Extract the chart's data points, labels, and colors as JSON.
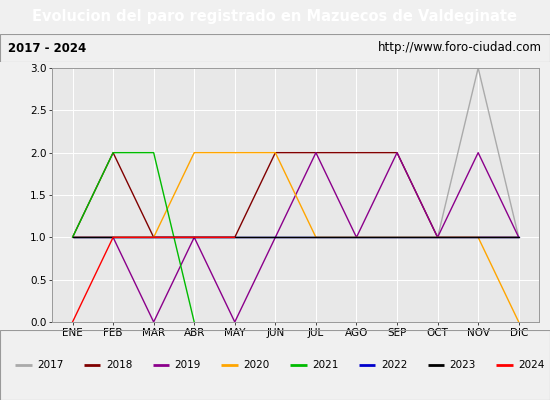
{
  "title": "Evolucion del paro registrado en Mazuecos de Valdeginate",
  "subtitle_left": "2017 - 2024",
  "subtitle_right": "http://www.foro-ciudad.com",
  "months": [
    "ENE",
    "FEB",
    "MAR",
    "ABR",
    "MAY",
    "JUN",
    "JUL",
    "AGO",
    "SEP",
    "OCT",
    "NOV",
    "DIC"
  ],
  "month_indices": [
    1,
    2,
    3,
    4,
    5,
    6,
    7,
    8,
    9,
    10,
    11,
    12
  ],
  "series": {
    "2017": {
      "color": "#aaaaaa",
      "data_x": [
        1,
        2,
        3,
        4,
        5,
        6,
        7,
        8,
        9,
        10,
        11,
        12
      ],
      "data_y": [
        1,
        1,
        1,
        1,
        1,
        1,
        1,
        1,
        1,
        1,
        3,
        1
      ]
    },
    "2018": {
      "color": "#800000",
      "data_x": [
        1,
        2,
        3,
        4,
        5,
        6,
        7,
        8,
        9,
        10,
        11,
        12
      ],
      "data_y": [
        1,
        2,
        1,
        1,
        1,
        2,
        2,
        2,
        2,
        1,
        1,
        1
      ]
    },
    "2019": {
      "color": "#8b008b",
      "data_x": [
        1,
        2,
        3,
        4,
        5,
        6,
        7,
        8,
        9,
        10,
        11,
        12
      ],
      "data_y": [
        1,
        1,
        0,
        1,
        0,
        1,
        2,
        1,
        2,
        1,
        2,
        1
      ]
    },
    "2020": {
      "color": "#ffa500",
      "data_x": [
        1,
        2,
        3,
        4,
        5,
        6,
        7,
        8,
        9,
        10,
        11,
        12
      ],
      "data_y": [
        1,
        1,
        1,
        2,
        2,
        2,
        1,
        1,
        1,
        1,
        1,
        0
      ]
    },
    "2021": {
      "color": "#00bb00",
      "data_x": [
        1,
        2,
        3,
        4
      ],
      "data_y": [
        1,
        2,
        2,
        0
      ]
    },
    "2022": {
      "color": "#0000cc",
      "data_x": [
        1,
        2,
        3,
        4,
        5,
        6,
        7,
        8,
        9,
        10,
        11,
        12
      ],
      "data_y": [
        1,
        1,
        1,
        1,
        1,
        1,
        1,
        1,
        1,
        1,
        1,
        1
      ]
    },
    "2023": {
      "color": "#000000",
      "data_x": [
        1,
        2,
        3,
        4,
        5,
        6,
        7,
        8,
        9,
        10,
        11,
        12
      ],
      "data_y": [
        1,
        1,
        1,
        1,
        1,
        1,
        1,
        1,
        1,
        1,
        1,
        1
      ]
    },
    "2024": {
      "color": "#ff0000",
      "data_x": [
        1,
        2,
        3,
        4,
        5
      ],
      "data_y": [
        0,
        1,
        1,
        1,
        1
      ]
    }
  },
  "ylim": [
    0.0,
    3.0
  ],
  "yticks": [
    0.0,
    0.5,
    1.0,
    1.5,
    2.0,
    2.5,
    3.0
  ],
  "bg_color": "#f0f0f0",
  "plot_bg_color": "#e8e8e8",
  "title_bg_color": "#4a6fa5",
  "title_fg_color": "#ffffff",
  "box_bg_color": "#d4d4d4"
}
